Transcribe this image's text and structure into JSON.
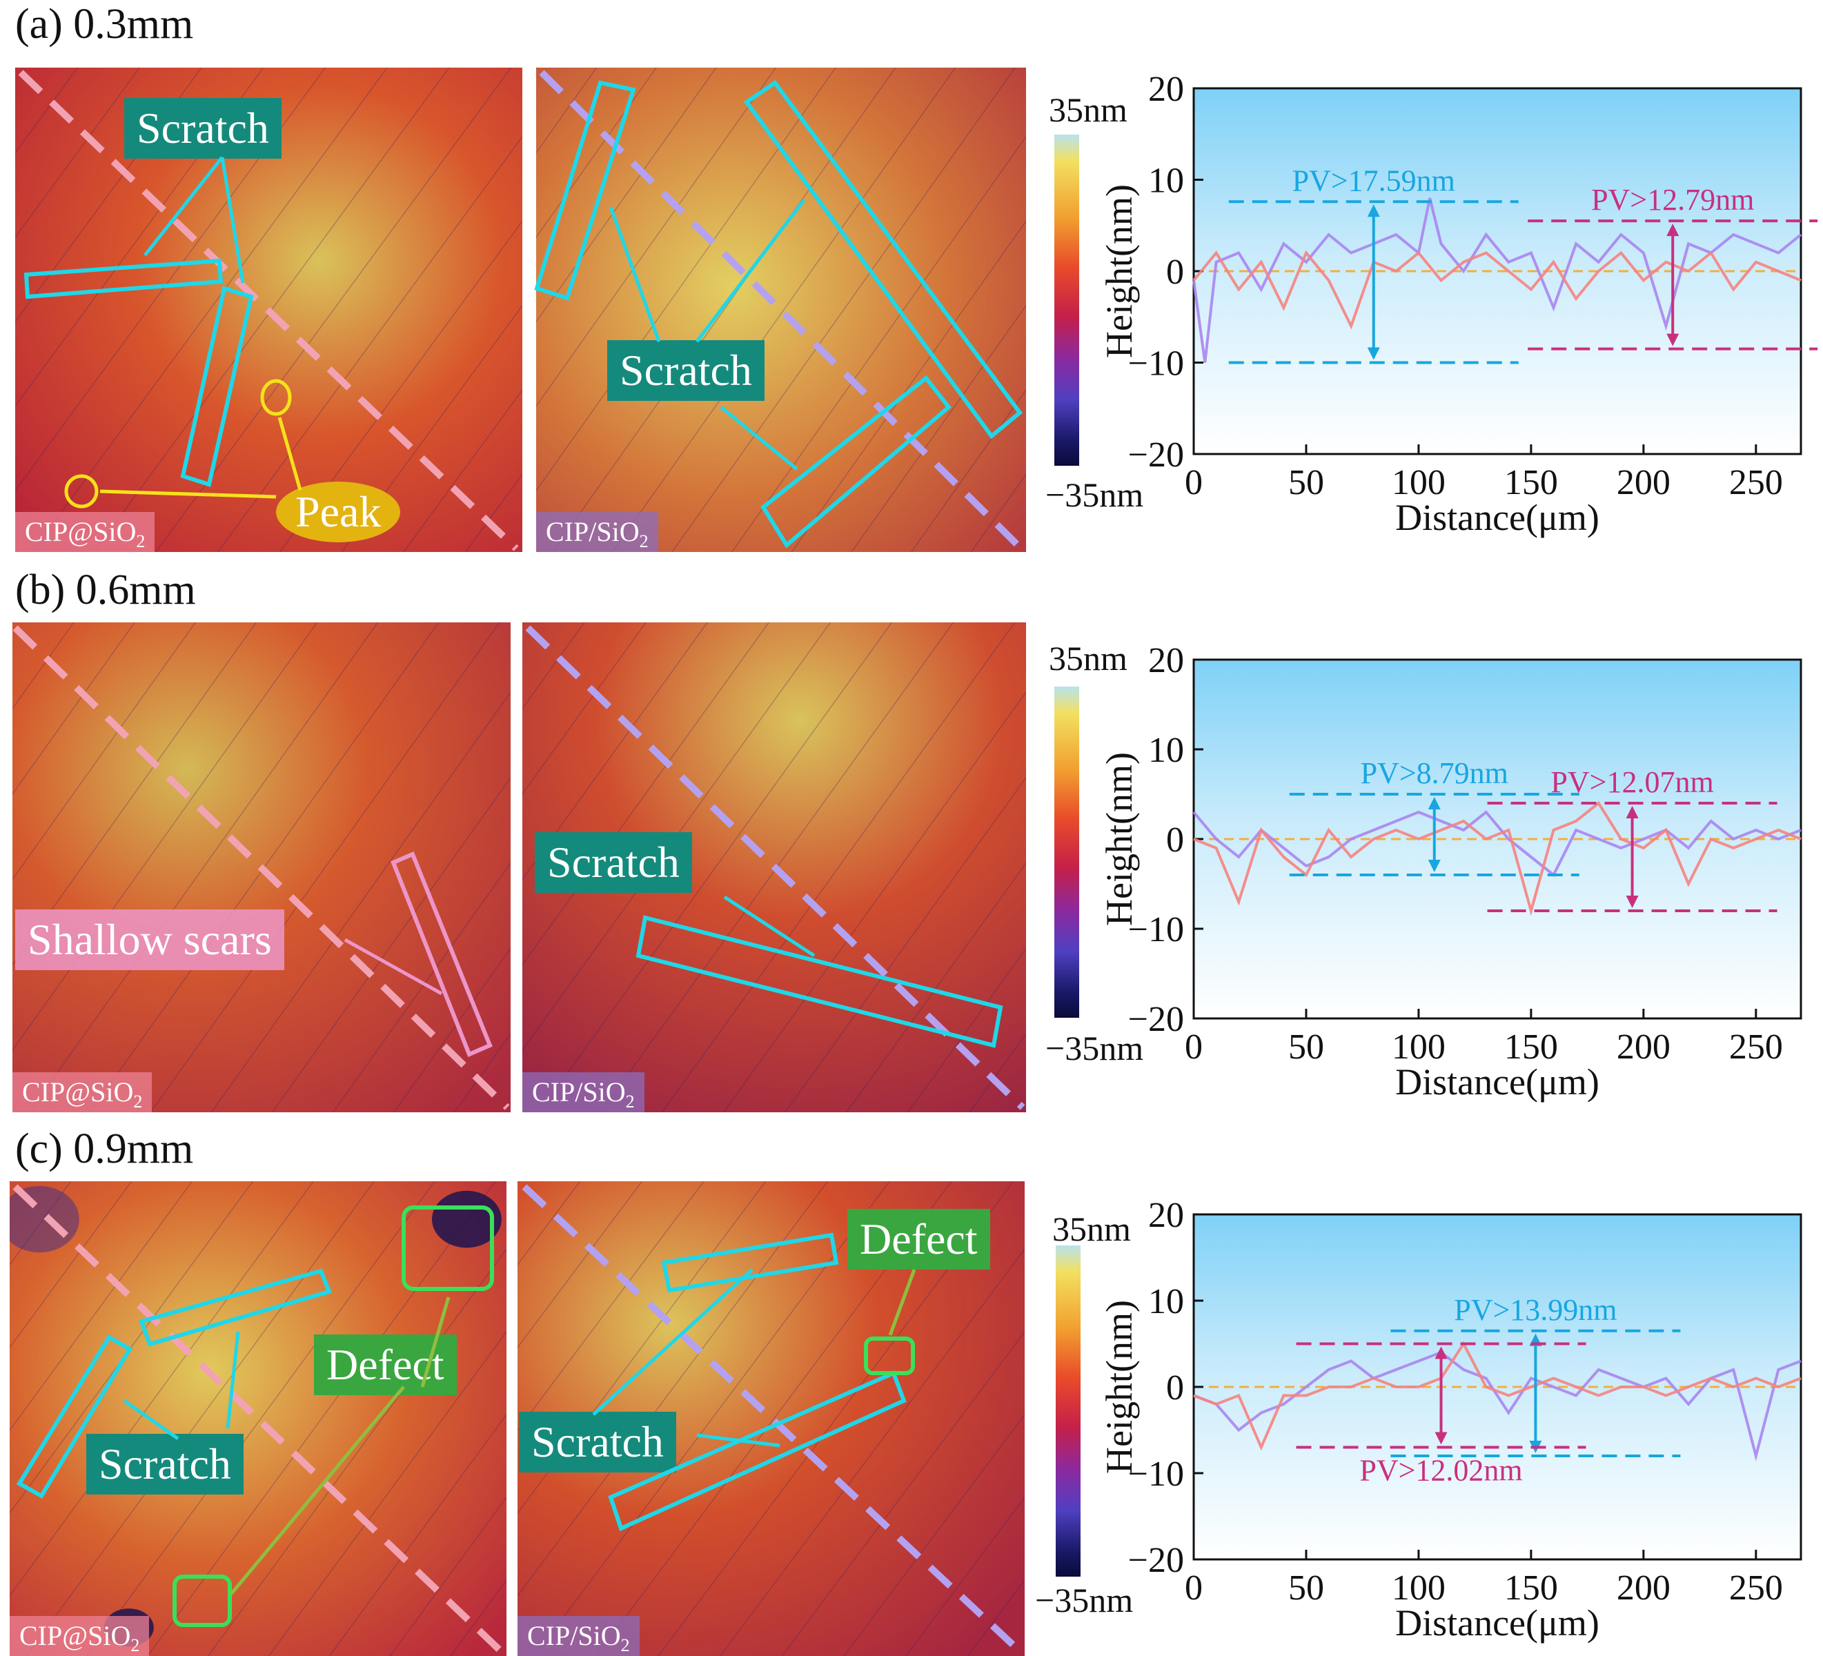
{
  "panels": [
    {
      "title": "(a) 0.3mm",
      "left_tag": "CIP@SiO",
      "left_tag_sub": "2",
      "right_tag": "CIP/SiO",
      "right_tag_sub": "2",
      "annotations": [
        "Scratch",
        "Peak",
        "Scratch"
      ],
      "colorbar": {
        "top": "35nm",
        "bottom": "−35nm"
      }
    },
    {
      "title": "(b) 0.6mm",
      "left_tag": "CIP@SiO",
      "left_tag_sub": "2",
      "right_tag": "CIP/SiO",
      "right_tag_sub": "2",
      "annotations": [
        "Shallow scars",
        "Scratch"
      ],
      "colorbar": {
        "top": "35nm",
        "bottom": "−35nm"
      }
    },
    {
      "title": "(c) 0.9mm",
      "left_tag": "CIP@SiO",
      "left_tag_sub": "2",
      "right_tag": "CIP/SiO",
      "right_tag_sub": "2",
      "annotations": [
        "Defect",
        "Scratch",
        "Defect",
        "Scratch"
      ],
      "colorbar": {
        "top": "35nm",
        "bottom": "−35nm"
      }
    }
  ],
  "colors": {
    "cyan": "#1fd7e8",
    "pink_dash": "#f2a3b3",
    "violet_dash": "#b4a2f0",
    "pv_blue": "#18a6df",
    "pv_magenta": "#c8307e",
    "series_purple": "#a985f0",
    "series_salmon": "#f5837f",
    "zero_line": "#f0b040",
    "green": "#39e05a",
    "yellow": "#f6e21a"
  },
  "chart_data": [
    {
      "type": "line",
      "xlabel": "Distance(μm)",
      "ylabel": "Height(nm)",
      "xlim": [
        0,
        270
      ],
      "ylim": [
        -20,
        20
      ],
      "xticks": [
        0,
        50,
        100,
        150,
        200,
        250
      ],
      "yticks": [
        20,
        10,
        0,
        -10,
        -20
      ],
      "ytick_labels": [
        "20",
        "10",
        "0",
        "−10",
        "−20"
      ],
      "series": [
        {
          "name": "CIP/SiO2",
          "color": "#a985f0",
          "x": [
            0,
            5,
            10,
            20,
            30,
            40,
            50,
            60,
            70,
            80,
            90,
            100,
            105,
            110,
            120,
            130,
            140,
            150,
            160,
            170,
            180,
            190,
            200,
            210,
            220,
            230,
            240,
            250,
            260,
            270
          ],
          "values": [
            -1,
            -10,
            1,
            2,
            -2,
            3,
            1,
            4,
            2,
            3,
            4,
            2,
            8,
            3,
            0,
            4,
            1,
            2,
            -4,
            3,
            1,
            4,
            2,
            -6,
            3,
            2,
            4,
            3,
            2,
            4
          ]
        },
        {
          "name": "CIP@SiO2",
          "color": "#f5837f",
          "x": [
            0,
            10,
            20,
            30,
            40,
            50,
            60,
            70,
            80,
            90,
            100,
            110,
            120,
            130,
            140,
            150,
            160,
            170,
            180,
            190,
            200,
            210,
            220,
            230,
            240,
            250,
            260,
            270
          ],
          "values": [
            -1,
            2,
            -2,
            1,
            -4,
            2,
            -1,
            -6,
            1,
            0,
            2,
            -1,
            1,
            2,
            0,
            -2,
            1,
            -3,
            0,
            2,
            -1,
            1,
            0,
            2,
            -2,
            1,
            0,
            -1
          ]
        }
      ],
      "annotations": [
        {
          "text": "PV>17.59nm",
          "color": "#18a6df",
          "y_top": 7.6,
          "y_bottom": -10,
          "x": 80
        },
        {
          "text": "PV>12.79nm",
          "color": "#c8307e",
          "y_top": 5.5,
          "y_bottom": -8.5,
          "x": 213
        }
      ]
    },
    {
      "type": "line",
      "xlabel": "Distance(μm)",
      "ylabel": "Height(nm)",
      "xlim": [
        0,
        270
      ],
      "ylim": [
        -20,
        20
      ],
      "xticks": [
        0,
        50,
        100,
        150,
        200,
        250
      ],
      "yticks": [
        20,
        10,
        0,
        -10,
        -20
      ],
      "ytick_labels": [
        "20",
        "10",
        "0",
        "−10",
        "−20"
      ],
      "series": [
        {
          "name": "CIP/SiO2",
          "color": "#a985f0",
          "x": [
            0,
            10,
            20,
            30,
            40,
            50,
            60,
            70,
            80,
            90,
            100,
            110,
            120,
            130,
            140,
            150,
            160,
            170,
            180,
            190,
            200,
            210,
            220,
            230,
            240,
            250,
            260,
            270
          ],
          "values": [
            3,
            0,
            -2,
            1,
            -1,
            -3,
            -2,
            0,
            1,
            2,
            3,
            2,
            1,
            3,
            0,
            -2,
            -4,
            1,
            0,
            -1,
            0,
            1,
            -1,
            2,
            0,
            1,
            0,
            1
          ]
        },
        {
          "name": "CIP@SiO2",
          "color": "#f5837f",
          "x": [
            0,
            10,
            20,
            30,
            40,
            50,
            60,
            70,
            80,
            90,
            100,
            110,
            120,
            130,
            140,
            150,
            160,
            170,
            180,
            190,
            200,
            210,
            220,
            230,
            240,
            250,
            260,
            270
          ],
          "values": [
            0,
            -1,
            -7,
            1,
            -2,
            -4,
            1,
            -2,
            0,
            1,
            0,
            1,
            2,
            0,
            1,
            -8,
            1,
            2,
            4,
            0,
            -1,
            1,
            -5,
            0,
            -1,
            0,
            1,
            0
          ]
        }
      ],
      "annotations": [
        {
          "text": "PV>8.79nm",
          "color": "#18a6df",
          "y_top": 5,
          "y_bottom": -4,
          "x": 107
        },
        {
          "text": "PV>12.07nm",
          "color": "#c8307e",
          "y_top": 4,
          "y_bottom": -8,
          "x": 195
        }
      ]
    },
    {
      "type": "line",
      "xlabel": "Distance(μm)",
      "ylabel": "Height(nm)",
      "xlim": [
        0,
        270
      ],
      "ylim": [
        -20,
        20
      ],
      "xticks": [
        0,
        50,
        100,
        150,
        200,
        250
      ],
      "yticks": [
        20,
        10,
        0,
        -10,
        -20
      ],
      "ytick_labels": [
        "20",
        "10",
        "0",
        "−10",
        "−20"
      ],
      "series": [
        {
          "name": "CIP/SiO2",
          "color": "#a985f0",
          "x": [
            0,
            10,
            20,
            30,
            40,
            50,
            60,
            70,
            80,
            90,
            100,
            110,
            120,
            130,
            140,
            150,
            160,
            170,
            180,
            190,
            200,
            210,
            220,
            230,
            240,
            250,
            260,
            270
          ],
          "values": [
            -1,
            -2,
            -5,
            -3,
            -2,
            0,
            2,
            3,
            1,
            2,
            3,
            4,
            2,
            1,
            -3,
            1,
            0,
            -1,
            2,
            1,
            0,
            1,
            -2,
            1,
            2,
            -8,
            2,
            3
          ]
        },
        {
          "name": "CIP@SiO2",
          "color": "#f5837f",
          "x": [
            0,
            10,
            20,
            30,
            40,
            50,
            60,
            70,
            80,
            90,
            100,
            110,
            120,
            130,
            140,
            150,
            160,
            170,
            180,
            190,
            200,
            210,
            220,
            230,
            240,
            250,
            260,
            270
          ],
          "values": [
            -1,
            -2,
            -1,
            -7,
            -1,
            -1,
            0,
            0,
            1,
            0,
            0,
            1,
            5,
            0,
            -1,
            0,
            1,
            0,
            -1,
            0,
            0,
            -1,
            0,
            1,
            0,
            1,
            0,
            1
          ]
        }
      ],
      "annotations": [
        {
          "text": "PV>13.99nm",
          "color": "#18a6df",
          "y_top": 6.5,
          "y_bottom": -8,
          "x": 152
        },
        {
          "text": "PV>12.02nm",
          "color": "#c8307e",
          "y_top": 5,
          "y_bottom": -7,
          "x": 110
        }
      ]
    }
  ]
}
